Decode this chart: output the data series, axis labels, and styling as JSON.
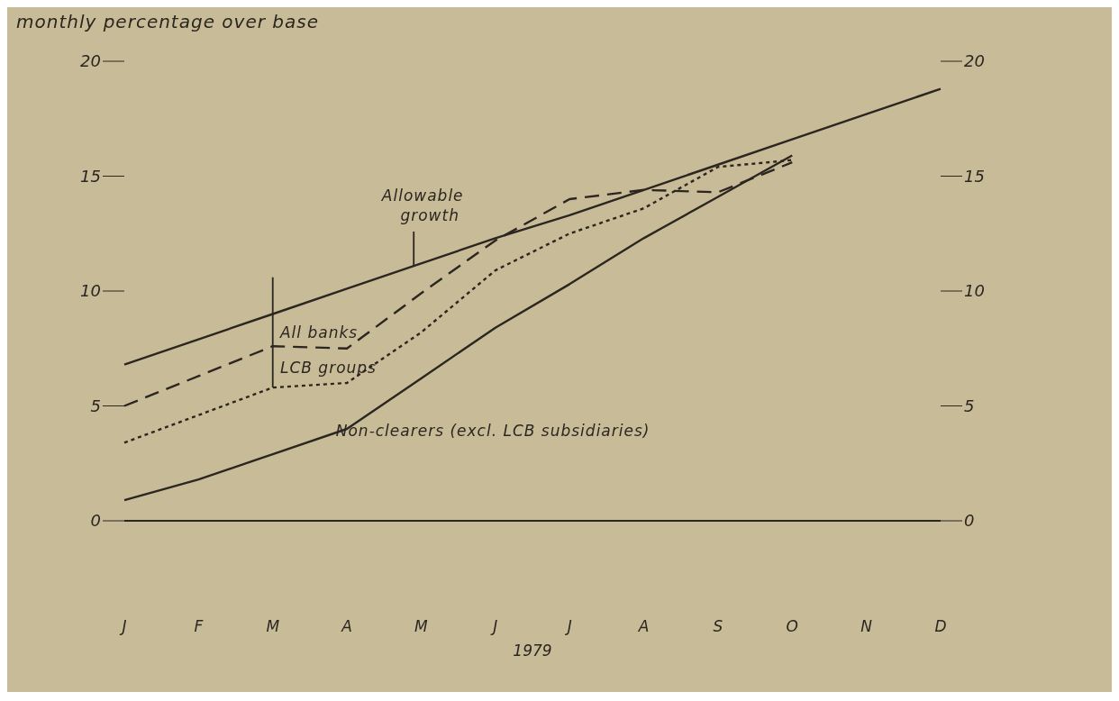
{
  "chart_data": {
    "type": "line",
    "title": "monthly percentage over base",
    "xlabel": "1979",
    "categories": [
      "J",
      "F",
      "M",
      "A",
      "M",
      "J",
      "J",
      "A",
      "S",
      "O",
      "N",
      "D"
    ],
    "series": [
      {
        "name": "Allowable growth",
        "color": "#2b2620",
        "line_style": "solid",
        "values": [
          6.8,
          7.9,
          9.0,
          10.1,
          11.2,
          12.3,
          13.3,
          14.4,
          15.5,
          16.6,
          17.7,
          18.8
        ]
      },
      {
        "name": "All banks",
        "color": "#2b2620",
        "line_style": "dashed",
        "values": [
          5.0,
          6.3,
          7.6,
          7.5,
          9.9,
          12.2,
          14.0,
          14.4,
          14.3,
          15.6,
          null,
          null
        ]
      },
      {
        "name": "LCB groups",
        "color": "#2b2620",
        "line_style": "dotted",
        "values": [
          3.4,
          4.6,
          5.8,
          6.0,
          8.2,
          10.9,
          12.5,
          13.6,
          15.4,
          15.7,
          null,
          null
        ]
      },
      {
        "name": "Non-clearers (excl. LCB subsidiaries)",
        "color": "#2b2620",
        "line_style": "solid",
        "values": [
          0.9,
          1.8,
          2.9,
          4.0,
          6.2,
          8.4,
          10.3,
          12.3,
          14.1,
          15.9,
          null,
          null
        ]
      }
    ],
    "ylim": [
      0,
      20
    ],
    "yticks": [
      0,
      5,
      10,
      15,
      20
    ],
    "y2lim": [
      0,
      20
    ],
    "y2ticks": [
      0,
      5,
      10,
      15,
      20
    ]
  }
}
